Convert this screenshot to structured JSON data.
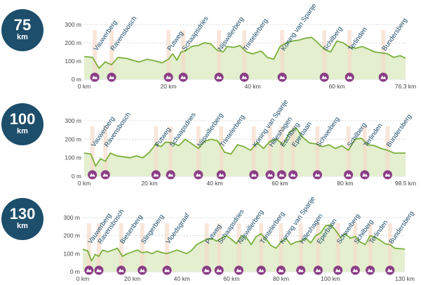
{
  "chart_data": [
    {
      "type": "area",
      "badge": {
        "value": "75",
        "unit": "km"
      },
      "ylim": [
        0,
        300
      ],
      "y_ticks": [
        "0 m",
        "100 m",
        "200 m",
        "300 m"
      ],
      "y_tick_values": [
        0,
        100,
        200,
        300
      ],
      "xlim": [
        0,
        76.3
      ],
      "x_ticks": [
        "0 km",
        "20 km",
        "40 km",
        "60 km",
        "76.3 km"
      ],
      "x_tick_values": [
        0,
        20,
        40,
        60,
        76.3
      ],
      "profile": {
        "x": [
          0,
          2,
          3.5,
          5,
          6.5,
          8,
          10,
          11.5,
          13,
          15,
          17,
          18.5,
          20,
          21,
          22,
          23,
          24,
          25.5,
          27,
          28.5,
          30,
          31.5,
          33,
          34,
          35.5,
          37,
          38.5,
          40,
          42,
          43.5,
          45,
          46.5,
          48,
          49.5,
          51,
          52.5,
          54,
          55.5,
          57,
          58.5,
          60,
          61.5,
          63,
          64.5,
          66,
          67.5,
          69,
          70.5,
          72,
          73.5,
          75,
          76.3
        ],
        "y": [
          125,
          120,
          60,
          95,
          80,
          120,
          115,
          105,
          95,
          110,
          100,
          90,
          110,
          140,
          105,
          150,
          155,
          180,
          185,
          200,
          195,
          160,
          150,
          180,
          175,
          185,
          150,
          140,
          155,
          120,
          110,
          180,
          200,
          210,
          215,
          225,
          230,
          200,
          165,
          150,
          210,
          200,
          175,
          170,
          180,
          165,
          150,
          145,
          140,
          120,
          130,
          115
        ]
      },
      "climbs": [
        {
          "name": "Vauwerberg",
          "km": 2.5
        },
        {
          "name": "Ravensbosch",
          "km": 6.5
        },
        {
          "name": "Putweg",
          "km": 20
        },
        {
          "name": "Schaapsdries",
          "km": 23.5
        },
        {
          "name": "Nijswillerberg",
          "km": 32
        },
        {
          "name": "Trintelerberg",
          "km": 38
        },
        {
          "name": "Koning van Spanje",
          "km": 47
        },
        {
          "name": "Schilberg",
          "km": 57
        },
        {
          "name": "Terlinden",
          "km": 63
        },
        {
          "name": "Bundersberg",
          "km": 71
        }
      ]
    },
    {
      "type": "area",
      "badge": {
        "value": "100",
        "unit": "km"
      },
      "ylim": [
        0,
        300
      ],
      "y_ticks": [
        "0 m",
        "100 m",
        "200 m",
        "300 m"
      ],
      "y_tick_values": [
        0,
        100,
        200,
        300
      ],
      "xlim": [
        0,
        98.5
      ],
      "x_ticks": [
        "0 km",
        "20 km",
        "40 km",
        "60 km",
        "80 km",
        "98.5 km"
      ],
      "x_tick_values": [
        0,
        20,
        40,
        60,
        80,
        98.5
      ],
      "profile": {
        "x": [
          0,
          2,
          3.5,
          5,
          6.5,
          8,
          10,
          12,
          14,
          16,
          18,
          20,
          22,
          23.5,
          25,
          27,
          29,
          31,
          33,
          35,
          37,
          39,
          41,
          43,
          45,
          47,
          49,
          51,
          53,
          55,
          57,
          59,
          61,
          63,
          65,
          67,
          69,
          71,
          73,
          75,
          77,
          79,
          81,
          83,
          85,
          87,
          89,
          91,
          93,
          95,
          98.5
        ],
        "y": [
          125,
          120,
          55,
          95,
          80,
          125,
          110,
          105,
          100,
          110,
          100,
          130,
          175,
          160,
          185,
          180,
          165,
          200,
          175,
          150,
          190,
          200,
          190,
          130,
          120,
          170,
          160,
          140,
          180,
          150,
          190,
          200,
          170,
          240,
          260,
          210,
          180,
          175,
          160,
          170,
          150,
          165,
          140,
          200,
          205,
          170,
          165,
          150,
          140,
          125,
          125
        ]
      },
      "climbs": [
        {
          "name": "Vauwerberg",
          "km": 2.5
        },
        {
          "name": "Ravensbosch",
          "km": 6.5
        },
        {
          "name": "Putweg",
          "km": 22
        },
        {
          "name": "Schaapsdries",
          "km": 26.5
        },
        {
          "name": "Nijswillerberg",
          "km": 35
        },
        {
          "name": "Trintelerberg",
          "km": 42
        },
        {
          "name": "Koning van Spanje",
          "km": 52
        },
        {
          "name": "Hilleshagen",
          "km": 57
        },
        {
          "name": "Eschberg",
          "km": 60.5
        },
        {
          "name": "Eperbaan",
          "km": 64
        },
        {
          "name": "Schweiberg",
          "km": 71.5
        },
        {
          "name": "Schilberg",
          "km": 81
        },
        {
          "name": "Terlinden",
          "km": 86
        },
        {
          "name": "Bundersberg",
          "km": 93
        }
      ]
    },
    {
      "type": "area",
      "badge": {
        "value": "130",
        "unit": "km"
      },
      "ylim": [
        0,
        300
      ],
      "y_ticks": [
        "0 m",
        "100 m",
        "200 m",
        "300 m"
      ],
      "y_tick_values": [
        0,
        100,
        200,
        300
      ],
      "xlim": [
        0,
        130
      ],
      "x_ticks": [
        "0 km",
        "20 km",
        "40 km",
        "60 km",
        "80 km",
        "100 km",
        "130 km"
      ],
      "x_tick_values": [
        0,
        20,
        40,
        60,
        80,
        100,
        130
      ],
      "profile": {
        "x": [
          0,
          2,
          3.5,
          5,
          6.5,
          8,
          10,
          12,
          14,
          16,
          18,
          20,
          22,
          24,
          26,
          28,
          30,
          32,
          34,
          36,
          38,
          40,
          42,
          44,
          46,
          48,
          50,
          52,
          54,
          56,
          58,
          60,
          62,
          64,
          66,
          68,
          70,
          72,
          74,
          76,
          78,
          80,
          82,
          84,
          86,
          88,
          90,
          92,
          94,
          96,
          98,
          100,
          102,
          104,
          106,
          108,
          110,
          112,
          114,
          116,
          118,
          120,
          122,
          124,
          126,
          130
        ],
        "y": [
          125,
          115,
          60,
          95,
          85,
          120,
          110,
          120,
          130,
          85,
          100,
          110,
          120,
          105,
          110,
          100,
          115,
          105,
          100,
          110,
          120,
          110,
          100,
          120,
          150,
          165,
          180,
          185,
          170,
          185,
          200,
          180,
          155,
          200,
          190,
          150,
          195,
          210,
          180,
          145,
          130,
          165,
          185,
          150,
          165,
          170,
          185,
          160,
          200,
          215,
          255,
          260,
          230,
          190,
          210,
          185,
          195,
          165,
          150,
          200,
          190,
          175,
          155,
          150,
          130,
          125
        ]
      },
      "climbs": [
        {
          "name": "Vauwerberg",
          "km": 2.5
        },
        {
          "name": "Ravensbosch",
          "km": 6.5
        },
        {
          "name": "Biesenberg",
          "km": 15.5
        },
        {
          "name": "Slingerberg",
          "km": 24
        },
        {
          "name": "Vloedsgraaf",
          "km": 34
        },
        {
          "name": "Putweg",
          "km": 50
        },
        {
          "name": "Schaapsdries",
          "km": 55
        },
        {
          "name": "Nijswillerberg",
          "km": 63
        },
        {
          "name": "Trintelerberg",
          "km": 72
        },
        {
          "name": "Koning van Spanje",
          "km": 80
        },
        {
          "name": "Hilleshagen",
          "km": 88
        },
        {
          "name": "Eperbaan",
          "km": 95
        },
        {
          "name": "Schweiberg",
          "km": 103
        },
        {
          "name": "Schilberg",
          "km": 110
        },
        {
          "name": "Terlinden",
          "km": 116
        },
        {
          "name": "Bundersberg",
          "km": 124
        }
      ]
    }
  ],
  "colors": {
    "badge": "#1d4e6b",
    "climb_label": "#1d4e6b",
    "profile_line": "#7bb03c",
    "profile_fill": "#e3efcf",
    "climb_band": "#f6d9c8",
    "climb_line": "#e39c69",
    "marker": "#8a3d86",
    "grid": "#cfcfcf"
  },
  "icons": {
    "climb_marker": "mountain-icon"
  }
}
